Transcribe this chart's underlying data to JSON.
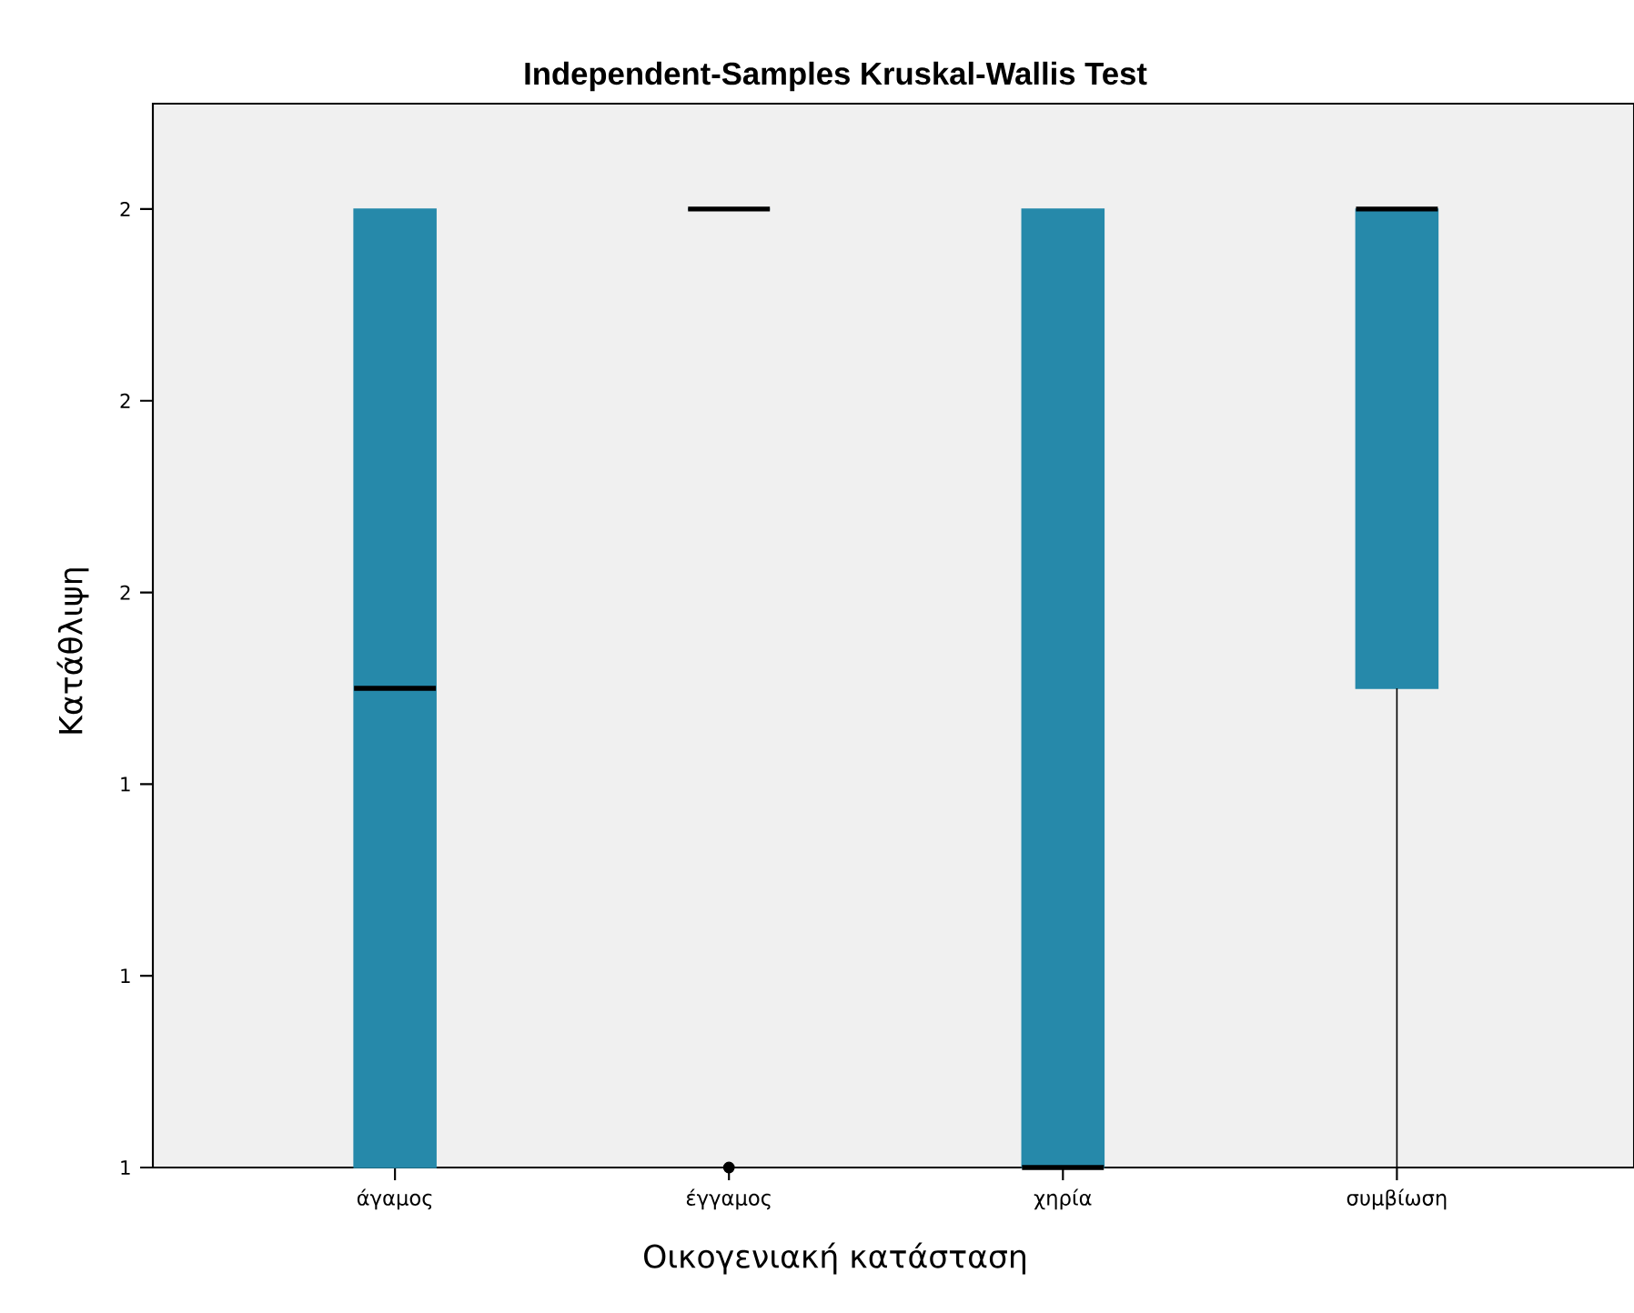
{
  "chart_data": {
    "type": "box",
    "title": "Independent-Samples Kruskal-Wallis Test",
    "xlabel": "Οικογενιακή κατάσταση",
    "ylabel": "Κατάθλιψη",
    "categories": [
      "άγαμος",
      "έγγαμος",
      "χηρία",
      "συμβίωση"
    ],
    "color": "#2689aa",
    "boxes": [
      {
        "low": 1,
        "q1": 1,
        "median": 1.5,
        "q3": 2,
        "high": 2
      },
      {
        "low": 2,
        "q1": 2,
        "median": 2,
        "q3": 2,
        "high": 2,
        "outliers": [
          1
        ]
      },
      {
        "low": 1,
        "q1": 1,
        "median": 1,
        "q3": 2,
        "high": 2
      },
      {
        "low": 1,
        "q1": 1.5,
        "median": 2,
        "q3": 2,
        "high": 2
      }
    ],
    "ylim": [
      1,
      2.11
    ],
    "yticks": [
      {
        "value": 1,
        "label": "1"
      },
      {
        "value": 1.2,
        "label": "1"
      },
      {
        "value": 1.4,
        "label": "1"
      },
      {
        "value": 1.6,
        "label": "2"
      },
      {
        "value": 1.8,
        "label": "2"
      },
      {
        "value": 2,
        "label": "2"
      }
    ],
    "grid": false
  }
}
